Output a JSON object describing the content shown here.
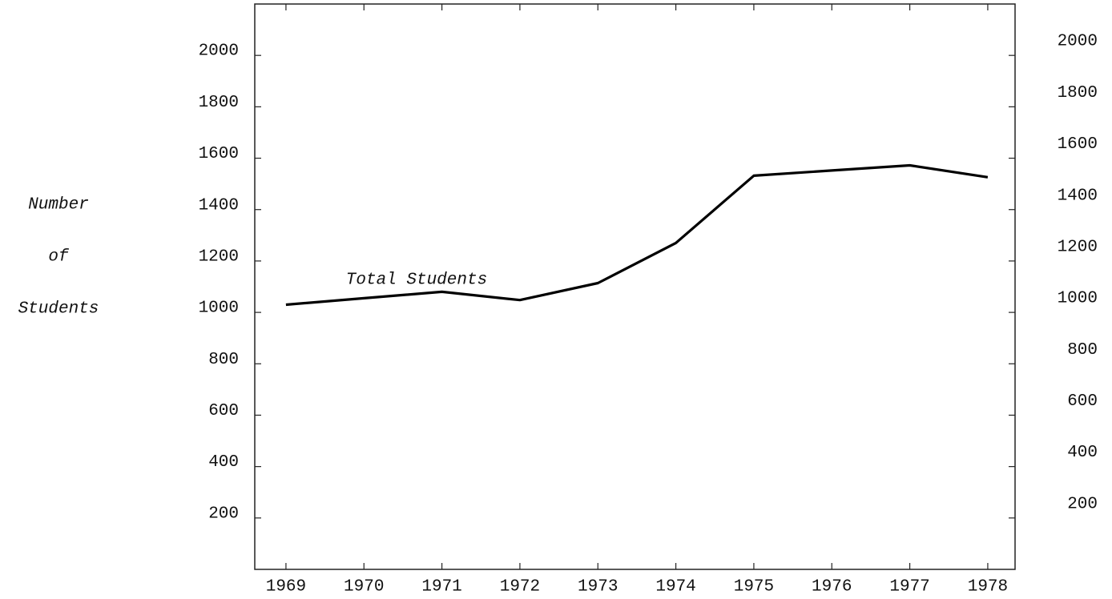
{
  "chart_data": {
    "type": "line",
    "ylabel": [
      "Number",
      "of",
      "Students"
    ],
    "annotation": "Total Students",
    "x": [
      1969,
      1970,
      1971,
      1972,
      1973,
      1974,
      1975,
      1976,
      1977,
      1978
    ],
    "series": [
      {
        "name": "Total Students",
        "color": "#000000",
        "values": [
          1030,
          1055,
          1080,
          1048,
          1114,
          1270,
          1532,
          1552,
          1572,
          1526
        ]
      }
    ],
    "xlim": [
      1968.6,
      1978.35
    ],
    "xticks": [
      1969,
      1970,
      1971,
      1972,
      1973,
      1974,
      1975,
      1976,
      1977,
      1978
    ],
    "ylim": [
      0,
      2200
    ],
    "yticks": [
      200,
      400,
      600,
      800,
      1000,
      1200,
      1400,
      1600,
      1800,
      2000
    ],
    "y2lim": [
      0,
      2200
    ],
    "y2ticks": [
      200,
      400,
      600,
      800,
      1000,
      1200,
      1400,
      1600,
      1800,
      2000
    ],
    "grid": false
  }
}
